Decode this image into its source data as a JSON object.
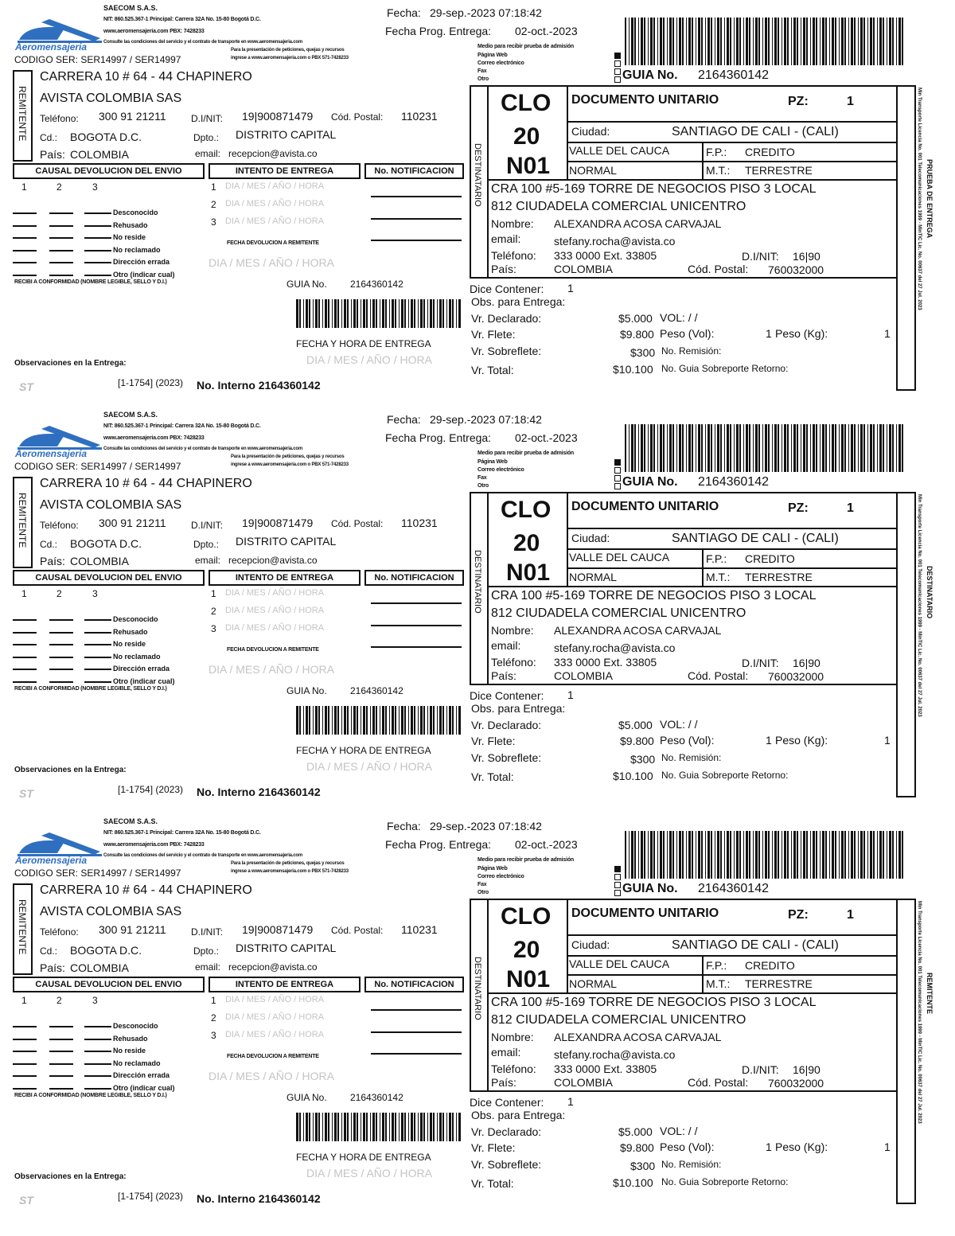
{
  "company": {
    "brand": "Aeromensajeria",
    "name": "SAECOM S.A.S.",
    "nit_line": "NIT: 860.525.367-1 Principal: Carrera 32A No. 15-80 Bogotá D.C.",
    "web_line": "www.aeromensajeria.com  PBX: 7428233",
    "conditions_line": "Consulte las condiciones del servicio y el contrato de transporte en www.aeromensajeria.com",
    "pqr_line1": "Para la presentación de peticiones, quejas y recursos",
    "pqr_line2": "ingrese a www.aeromensajeria.com o PBX 571-7428233",
    "codigo_ser": "CODIGO SER: SER14997 / SER14997",
    "license_text": "Min Transporte Licencia No. 001 Telecomunicaciones 1999 - MinTIC Lic. No. 00637 del 27 Jul. 2023",
    "brand_color": "#2f6fc0"
  },
  "dates": {
    "fecha_label": "Fecha:",
    "fecha": "29-sep.-2023 07:18:42",
    "prog_label": "Fecha Prog. Entrega:",
    "prog": "02-oct.-2023"
  },
  "sender": {
    "section_label": "REMITENTE",
    "address": "CARRERA 10 # 64 - 44 CHAPINERO",
    "name": "AVISTA COLOMBIA SAS",
    "phone_label": "Teléfono:",
    "phone": "300 91 21211",
    "nit_label": "D.I/NIT:",
    "nit": "19|900871479",
    "postal_label": "Cód. Postal:",
    "postal": "110231",
    "city_label": "Cd.:",
    "city": "BOGOTA D.C.",
    "dept_label": "Dpto.:",
    "dept": "DISTRITO CAPITAL",
    "country_label": "País:",
    "country": "COLOMBIA",
    "email_label": "email:",
    "email": "recepcion@avista.co"
  },
  "returns": {
    "causal_header": "CAUSAL DEVOLUCION DEL ENVIO",
    "intento_header": "INTENTO DE ENTREGA",
    "notif_header": "No. NOTIFICACION",
    "columns": [
      "1",
      "2",
      "3"
    ],
    "reasons": [
      "Desconocido",
      "Rehusado",
      "No reside",
      "No reclamado",
      "Dirección errada",
      "Otro (indicar cual)"
    ],
    "attempts": [
      "1",
      "2",
      "3"
    ],
    "date_placeholder": "DIA / MES / AÑO / HORA",
    "devolucion_label": "FECHA DEVOLUCION A REMITENTE",
    "recibi_label": "RECIBI A CONFORMIDAD (NOMBRE LEGIBLE, SELLO Y D.I.)",
    "guia_label": "GUIA No.",
    "guia": "2164360142",
    "entrega_label": "FECHA Y HORA DE ENTREGA",
    "obs_label": "Observaciones en la Entrega:",
    "seal_text": "ST",
    "ref": "[1-1754] (2023)",
    "interno": "No. Interno 2164360142"
  },
  "admission": {
    "title": "Medio para recibir prueba de admisión",
    "options": [
      "Página Web",
      "Correo electrónico",
      "Fax",
      "Otro"
    ],
    "selected": 0
  },
  "guide": {
    "label": "GUIA No.",
    "number": "2164360142"
  },
  "recipient": {
    "section_label": "DESTINATARIO",
    "code1": "CLO",
    "code2": "20",
    "code3": "N01",
    "doc_type": "DOCUMENTO UNITARIO",
    "pz_label": "PZ:",
    "pz": "1",
    "city_label": "Ciudad:",
    "city": "SANTIAGO DE CALI - (CALI)",
    "dept": "VALLE DEL CAUCA",
    "fp_label": "F.P.:",
    "fp": "CREDITO",
    "service": "NORMAL",
    "mt_label": "M.T.:",
    "mt": "TERRESTRE",
    "address1": "CRA 100 #5-169 TORRE DE NEGOCIOS PISO 3 LOCAL",
    "address2": "812 CIUDADELA COMERCIAL UNICENTRO",
    "name_label": "Nombre:",
    "name": "ALEXANDRA ACOSA CARVAJAL",
    "email_label": "email:",
    "email": "stefany.rocha@avista.co",
    "phone_label": "Teléfono:",
    "phone": "333 0000 Ext. 33805",
    "nit_label": "D.I/NIT:",
    "nit": "16|90",
    "country_label": "País:",
    "country": "COLOMBIA",
    "postal_label": "Cód. Postal:",
    "postal": "760032000"
  },
  "charges": {
    "contains_label": "Dice Contener:",
    "contains": "1",
    "obs_label": "Obs. para Entrega:",
    "declared_label": "Vr. Declarado:",
    "declared": "$5.000",
    "vol_label": "VOL:  /  /",
    "freight_label": "Vr. Flete:",
    "freight": "$9.800",
    "peso_vol_label": "Peso (Vol):",
    "peso_vol": "1",
    "peso_kg_label": "Peso (Kg):",
    "peso_kg": "1",
    "surcharge_label": "Vr. Sobreflete:",
    "surcharge": "$300",
    "remision_label": "No. Remisión:",
    "total_label": "Vr. Total:",
    "total": "$10.100",
    "retorno_label": "No. Guia Sobreporte Retorno:"
  },
  "copies": [
    {
      "side_label": "PRUEBA DE ENTREGA"
    },
    {
      "side_label": "DESTINATARIO"
    },
    {
      "side_label": "REMITENTE"
    }
  ]
}
